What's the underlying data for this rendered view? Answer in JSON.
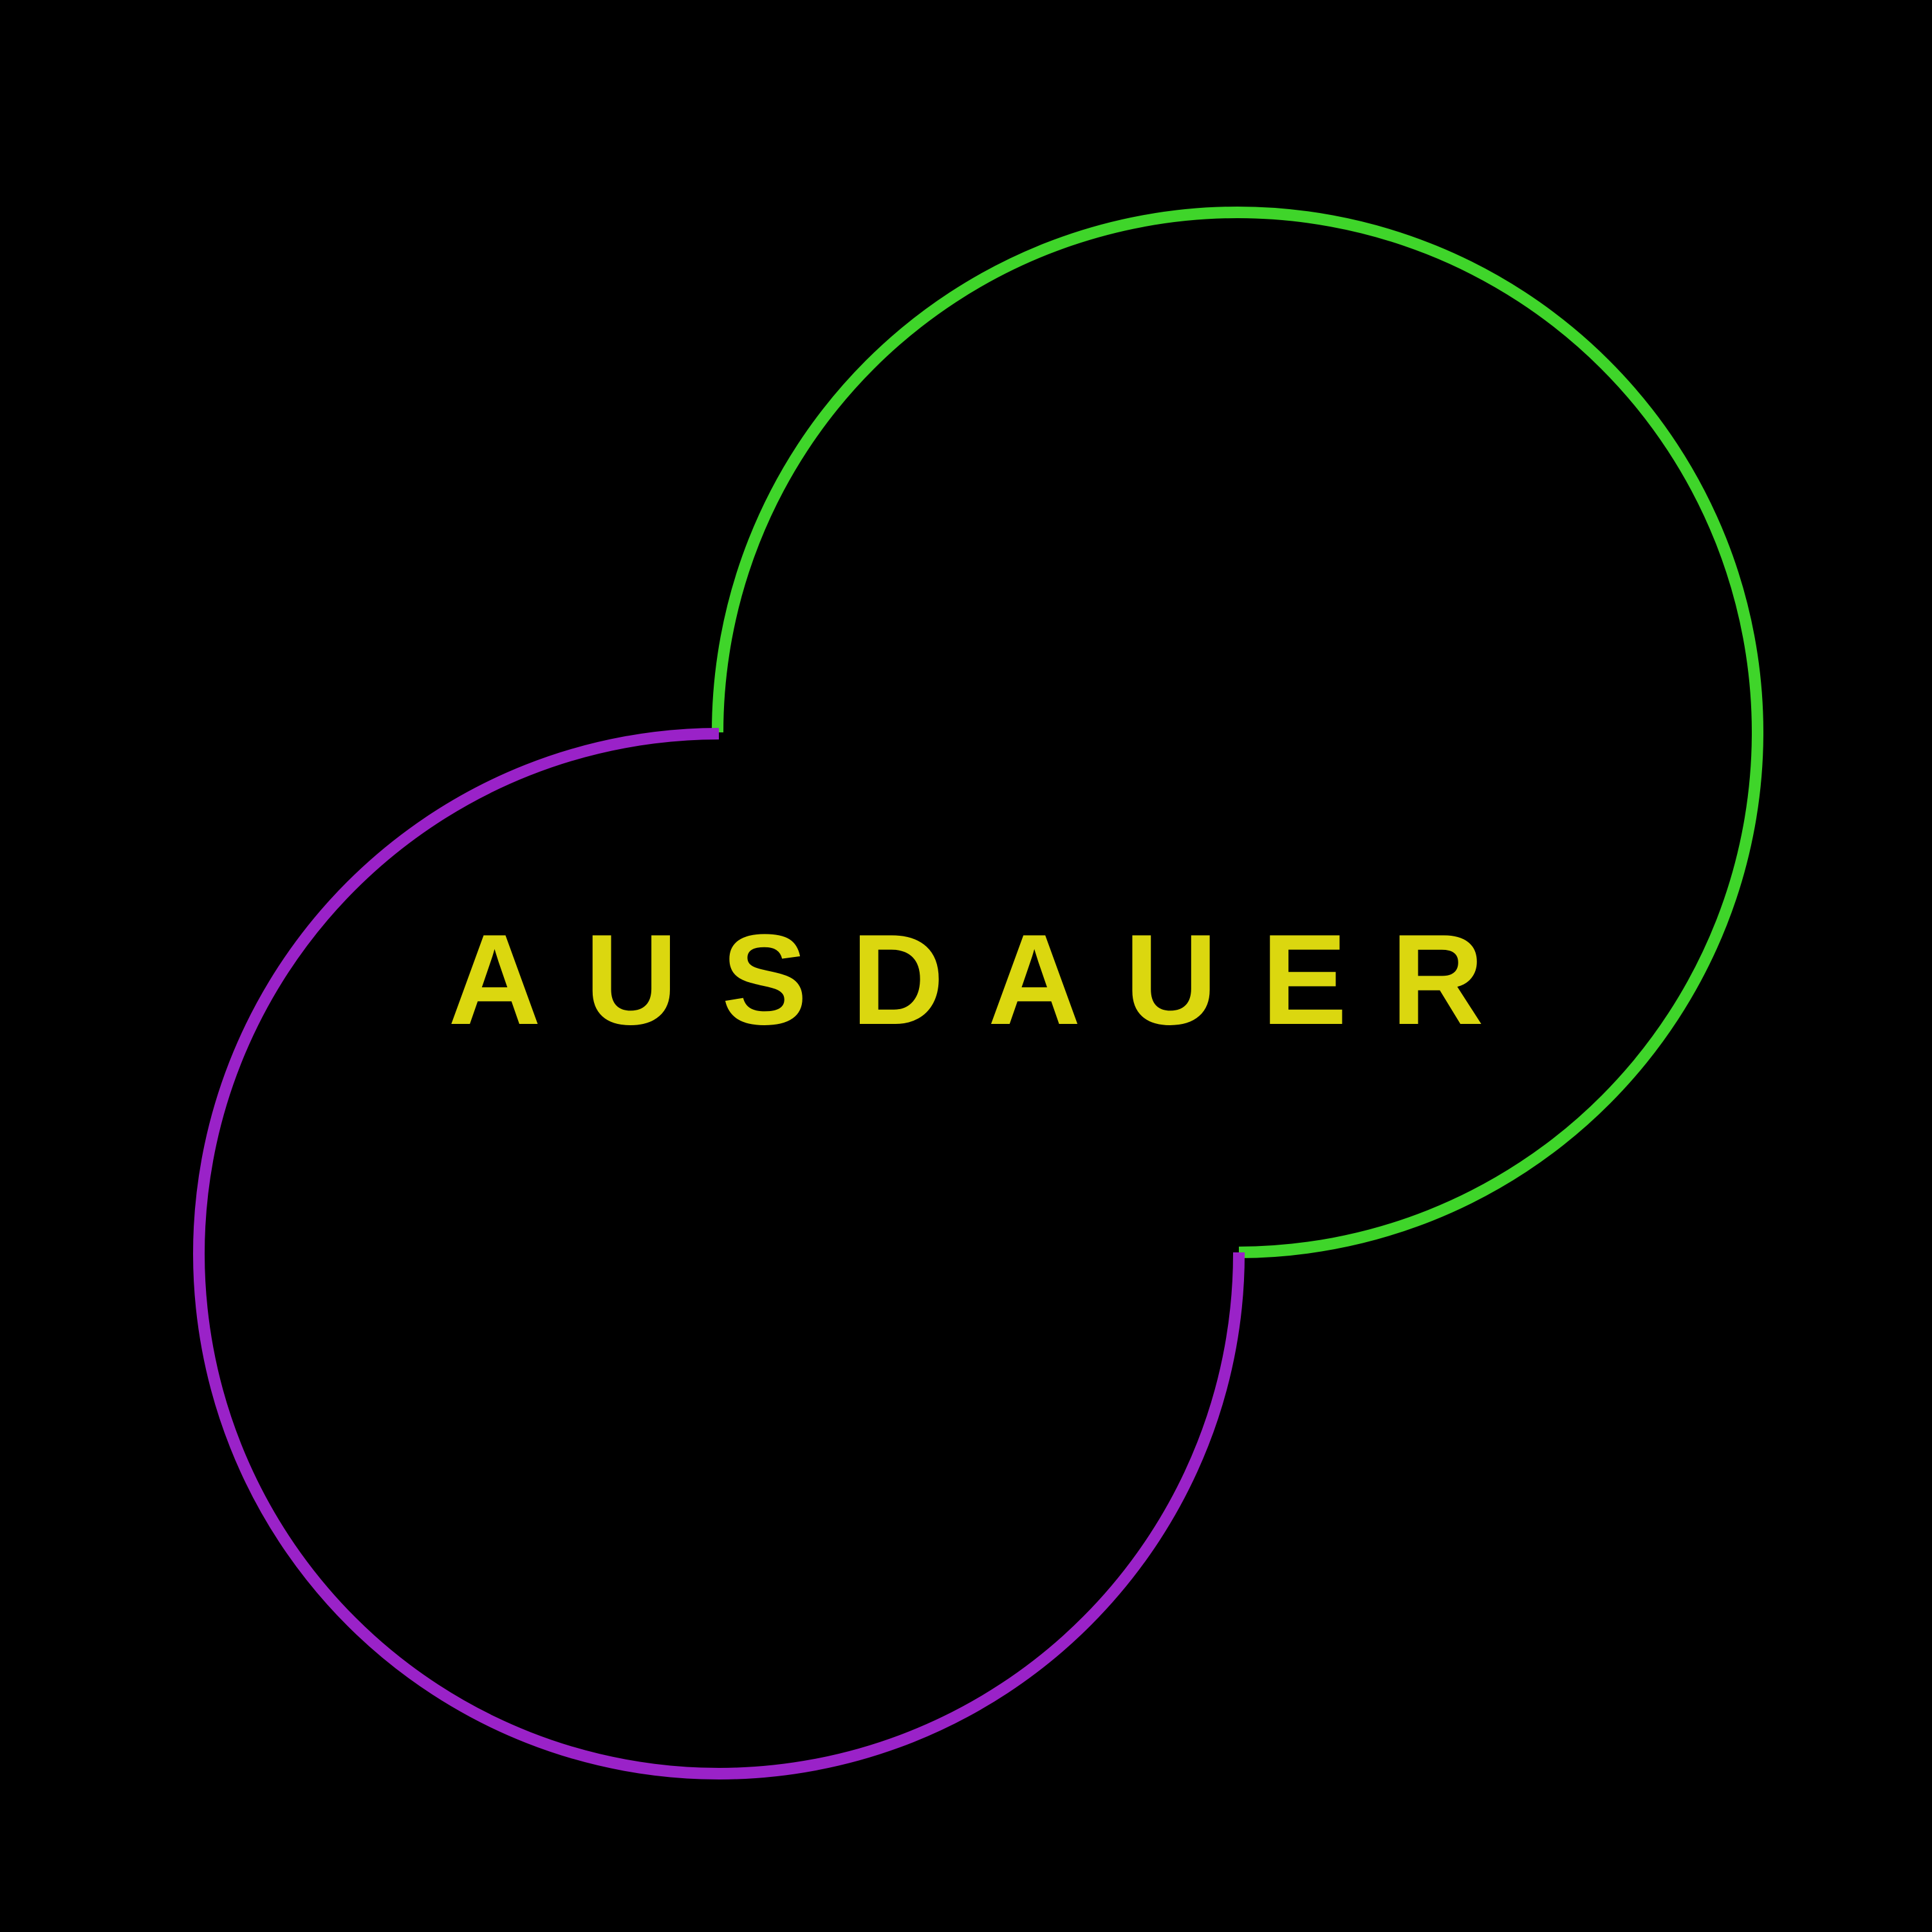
{
  "poster": {
    "headline": "AUSDAUER",
    "colors": {
      "background": "#000000",
      "text": "#dbd70f",
      "green_ring": "#3fd52a",
      "purple_ring": "#9a22c8"
    }
  }
}
